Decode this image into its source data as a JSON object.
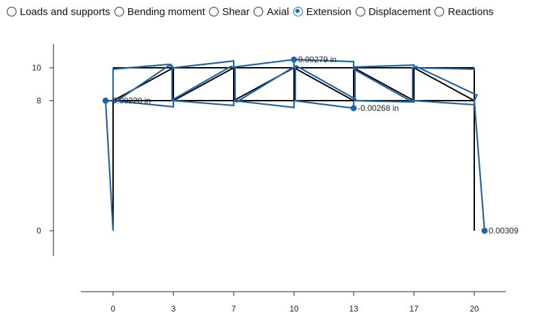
{
  "modes": [
    {
      "label": "Loads and supports",
      "selected": false
    },
    {
      "label": "Bending moment",
      "selected": false
    },
    {
      "label": "Shear",
      "selected": false
    },
    {
      "label": "Axial",
      "selected": false
    },
    {
      "label": "Extension",
      "selected": true
    },
    {
      "label": "Displacement",
      "selected": false
    },
    {
      "label": "Reactions",
      "selected": false
    }
  ],
  "colors": {
    "structure": "#000000",
    "extension": "#1f64a8",
    "axis": "#222222"
  },
  "chart_data": {
    "type": "diagram",
    "x_ticks": [
      "0",
      "3",
      "7",
      "10",
      "13",
      "17",
      "20"
    ],
    "y_ticks": [
      "0",
      "8",
      "10"
    ],
    "annotations": [
      {
        "text": "0.00279 in"
      },
      {
        "text": "-0.00228 in"
      },
      {
        "text": "-0.00268 in"
      },
      {
        "text": "0.00309"
      }
    ]
  }
}
